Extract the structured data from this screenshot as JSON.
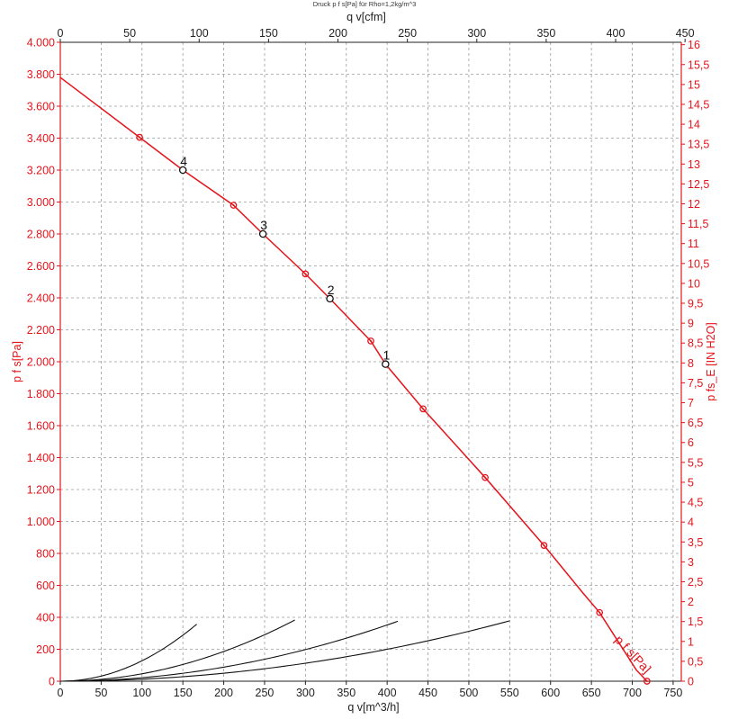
{
  "chart_data": {
    "type": "line",
    "title": "Druck p f s[Pa] für Rho=1,2kg/m^3",
    "x_axis_bottom": {
      "label": "q v[m^3/h]",
      "range": [
        0,
        760
      ],
      "ticks": [
        0,
        50,
        100,
        150,
        200,
        250,
        300,
        350,
        400,
        450,
        500,
        550,
        600,
        650,
        700,
        750
      ]
    },
    "x_axis_top": {
      "label": "q v[cfm]",
      "range": [
        0,
        447.3
      ],
      "ticks": [
        0,
        50,
        100,
        150,
        200,
        250,
        300,
        350,
        400,
        450
      ]
    },
    "y_axis_left": {
      "label": "p f s[Pa]",
      "range": [
        0,
        4000
      ],
      "ticks": [
        0,
        200,
        400,
        600,
        800,
        1000,
        1200,
        1400,
        1600,
        1800,
        2000,
        2200,
        2400,
        2600,
        2800,
        3000,
        3200,
        3400,
        3600,
        3800,
        4000
      ],
      "tick_labels": [
        "0",
        "200",
        "400",
        "600",
        "800",
        "1.000",
        "1.200",
        "1.400",
        "1.600",
        "1.800",
        "2.000",
        "2.200",
        "2.400",
        "2.600",
        "2.800",
        "3.000",
        "3.200",
        "3.400",
        "3.600",
        "3.800",
        "4.000"
      ]
    },
    "y_axis_right": {
      "label": "p fs_E [IN H2O]",
      "range": [
        0,
        16.06
      ],
      "ticks": [
        0,
        0.5,
        1,
        1.5,
        2,
        2.5,
        3,
        3.5,
        4,
        4.5,
        5,
        5.5,
        6,
        6.5,
        7,
        7.5,
        8,
        8.5,
        9,
        9.5,
        10,
        10.5,
        11,
        11.5,
        12,
        12.5,
        13,
        13.5,
        14,
        14.5,
        15,
        15.5,
        16
      ],
      "tick_labels": [
        "0",
        "0,5",
        "1",
        "1,5",
        "2",
        "2,5",
        "3",
        "3,5",
        "4",
        "4,5",
        "5",
        "5,5",
        "6",
        "6,5",
        "7",
        "7,5",
        "8",
        "8,5",
        "9",
        "9,5",
        "10",
        "10,5",
        "11",
        "11,5",
        "12",
        "12,5",
        "13",
        "13,5",
        "14",
        "14,5",
        "15",
        "15,5",
        "16"
      ]
    },
    "grid": true,
    "series": [
      {
        "name": "p f s[Pa]",
        "color": "#e4141b",
        "x": [
          0,
          97,
          150,
          212,
          248,
          300,
          330,
          380,
          398,
          444,
          520,
          592,
          640,
          660,
          705,
          718
        ],
        "y": [
          3780,
          3405,
          3200,
          2980,
          2800,
          2550,
          2395,
          2130,
          1985,
          1705,
          1275,
          850,
          550,
          430,
          70,
          0
        ],
        "markers_x": [
          97,
          212,
          300,
          380,
          444,
          520,
          592,
          660,
          718
        ],
        "markers_y": [
          3405,
          2980,
          2550,
          2130,
          1705,
          1275,
          850,
          430,
          0
        ]
      }
    ],
    "system_curves": [
      {
        "k": 0.0128,
        "x_end": 167
      },
      {
        "k": 0.00465,
        "x_end": 287
      },
      {
        "k": 0.0022,
        "x_end": 413
      },
      {
        "k": 0.00125,
        "x_end": 550
      }
    ],
    "operating_points": [
      {
        "label": "1",
        "x": 398,
        "y": 1985
      },
      {
        "label": "2",
        "x": 330,
        "y": 2395
      },
      {
        "label": "3",
        "x": 248,
        "y": 2800
      },
      {
        "label": "4",
        "x": 150,
        "y": 3200
      }
    ]
  }
}
